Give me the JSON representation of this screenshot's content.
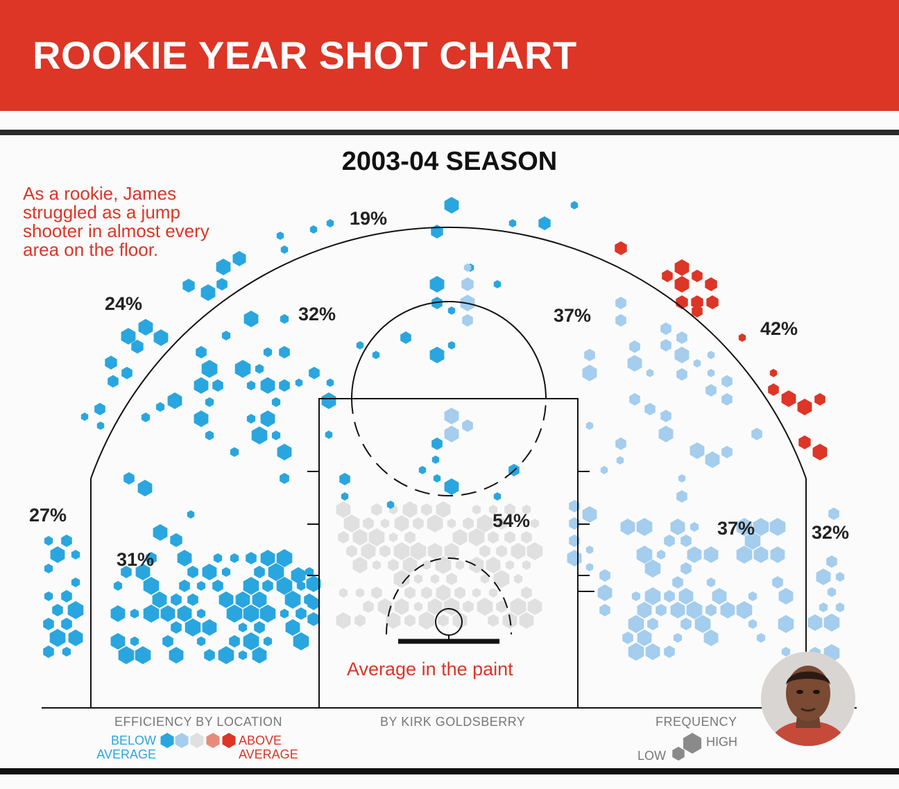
{
  "title": "ROOKIE YEAR SHOT CHART",
  "season": "2003-04 SEASON",
  "note": "As a rookie, James struggled as a jump shooter in almost every area on the floor.",
  "paint_label": "Average in the paint",
  "credit": "BY KIRK GOLDSBERRY",
  "legend": {
    "efficiency_title": "EFFICIENCY BY LOCATION",
    "below_line1": "BELOW",
    "below_line2": "AVERAGE",
    "above_line1": "ABOVE",
    "above_line2": "AVERAGE",
    "frequency_title": "FREQUENCY",
    "low": "LOW",
    "high": "HIGH"
  },
  "colors": {
    "banner": "#dd3526",
    "well_below": "#29a6df",
    "below": "#a4cdee",
    "average": "#e0e0e0",
    "above": "#e88a7a",
    "well_above": "#dd3526",
    "frequency": "#8a8a8a"
  },
  "chart_data": {
    "type": "heatmap",
    "title": "2003-04 SEASON",
    "zones": [
      {
        "label": "19%",
        "zone": "straightaway three",
        "efficiency": "well below average"
      },
      {
        "label": "24%",
        "zone": "left wing three",
        "efficiency": "well below average"
      },
      {
        "label": "27%",
        "zone": "left corner three",
        "efficiency": "well below average"
      },
      {
        "label": "31%",
        "zone": "left baseline midrange",
        "efficiency": "well below average"
      },
      {
        "label": "32%",
        "zone": "left elbow midrange",
        "efficiency": "well below average"
      },
      {
        "label": "37%",
        "zone": "right elbow midrange",
        "efficiency": "below average"
      },
      {
        "label": "42%",
        "zone": "right wing three",
        "efficiency": "above average"
      },
      {
        "label": "37%",
        "zone": "right baseline midrange",
        "efficiency": "below average"
      },
      {
        "label": "32%",
        "zone": "right corner three",
        "efficiency": "below average"
      },
      {
        "label": "54%",
        "zone": "paint",
        "efficiency": "average"
      }
    ]
  }
}
